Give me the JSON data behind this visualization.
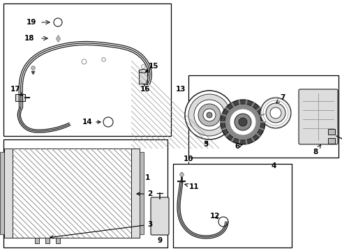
{
  "bg_color": "#ffffff",
  "box_color": "#000000",
  "lc": "#1a1a1a",
  "gray1": "#bbbbbb",
  "gray2": "#888888",
  "gray3": "#dddddd",
  "gray4": "#444444",
  "fig_width": 4.9,
  "fig_height": 3.6,
  "dpi": 100
}
